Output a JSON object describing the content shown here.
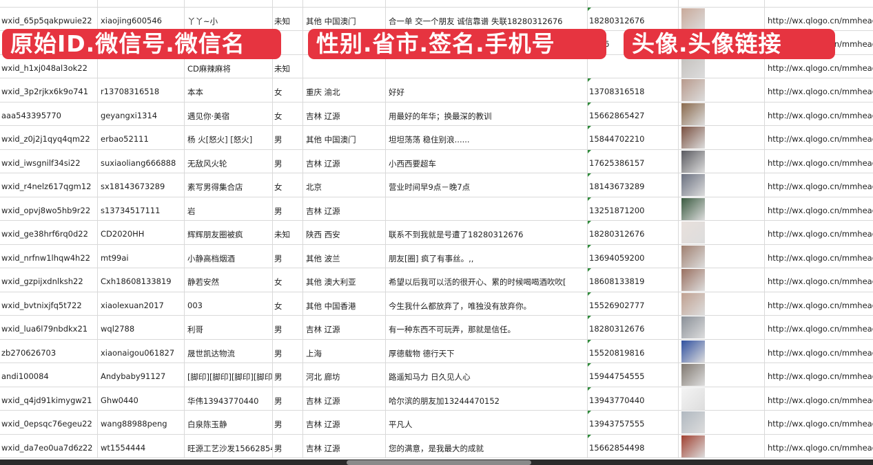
{
  "overlay_labels": [
    "原始ID.微信号.微信名",
    "性别.省市.签名.手机号",
    "头像.头像链接"
  ],
  "colors": {
    "label_bg": "#e63440",
    "grid": "#d9d9d9",
    "comment_marker": "#2e8b3a"
  },
  "rows": [
    {
      "id": "",
      "wechat": "",
      "name": "",
      "gender": "",
      "region": "",
      "signature": "",
      "phone": "",
      "url": ""
    },
    {
      "id": "wxid_65p5qakpwuie22",
      "wechat": "xiaojing600546",
      "name": "丫丫~小",
      "gender": "未知",
      "region": "其他 中国澳门",
      "signature": "合一单 交一个朋友 诚信靠谱 失联18280312676",
      "phone": "18280312676",
      "url": "http://wx.qlogo.cn/mmhead",
      "avatar": "#c9a99a"
    },
    {
      "id": "",
      "wechat": "",
      "name": "",
      "gender": "",
      "region": "",
      "signature": "",
      "phone": "5386",
      "url": "http://wx.qlogo.cn/mmhead",
      "avatar": "#6b7fa8"
    },
    {
      "id": "wxid_h1xj048al3ok22",
      "wechat": "",
      "name": "CD麻辣麻将",
      "gender": "未知",
      "region": "",
      "signature": "",
      "phone": "",
      "url": "http://wx.qlogo.cn/mmhead",
      "avatar": "#c4c0bc"
    },
    {
      "id": "wxid_3p2rjkx6k9o741",
      "wechat": "r13708316518",
      "name": "本本",
      "gender": "女",
      "region": "重庆 渝北",
      "signature": "好好",
      "phone": "13708316518",
      "url": "http://wx.qlogo.cn/mmhead",
      "avatar": "#b89a8c"
    },
    {
      "id": "aaa543395770",
      "wechat": "geyangxi1314",
      "name": "遇见你·美宿",
      "gender": "女",
      "region": "吉林 辽源",
      "signature": "用最好的年华；换最深的教训",
      "phone": "15662865427",
      "url": "http://wx.qlogo.cn/mmhead",
      "avatar": "#8a6a4c"
    },
    {
      "id": "wxid_z0j2j1qyq4qm22",
      "wechat": "erbao52111",
      "name": "杨 火[怒火] [怒火]",
      "gender": "男",
      "region": "其他 中国澳门",
      "signature": "坦坦荡荡 稳住别浪......",
      "phone": "15844702210",
      "url": "http://wx.qlogo.cn/mmhead",
      "avatar": "#7a5040"
    },
    {
      "id": "wxid_iwsgnilf34si22",
      "wechat": "suxiaoliang666888",
      "name": "无敌风火轮",
      "gender": "男",
      "region": "吉林 辽源",
      "signature": "小西西要超车",
      "phone": "17625386157",
      "url": "http://wx.qlogo.cn/mmhead",
      "avatar": "#5a5a60"
    },
    {
      "id": "wxid_r4nelz617qgm12",
      "wechat": "sx18143673289",
      "name": "素写男得集合店",
      "gender": "女",
      "region": "北京",
      "signature": "营业时间早9点－晚7点",
      "phone": "18143673289",
      "url": "http://wx.qlogo.cn/mmhead",
      "avatar": "#6a7080"
    },
    {
      "id": "wxid_opvj8wo5hb9r22",
      "wechat": "s13734517111",
      "name": "岩",
      "gender": "男",
      "region": "吉林 辽源",
      "signature": "",
      "phone": "13251871200",
      "url": "http://wx.qlogo.cn/mmhead",
      "avatar": "#3a5a40"
    },
    {
      "id": "wxid_ge38hrf6rq0d22",
      "wechat": "CD2020HH",
      "name": "辉辉朋友圈被疯",
      "gender": "未知",
      "region": "陕西 西安",
      "signature": "联系不到我就是号遭了18280312676",
      "phone": "18280312676",
      "url": "http://wx.qlogo.cn/mmhead",
      "avatar": "#e8e0dc"
    },
    {
      "id": "wxid_nrfnw1lhqw4h22",
      "wechat": "mt99ai",
      "name": "小静高档烟酒",
      "gender": "男",
      "region": "其他 波兰",
      "signature": "朋友[圈] 疯了有事丝。,,",
      "phone": "13694059200",
      "url": "http://wx.qlogo.cn/mmhead",
      "avatar": "#a08070"
    },
    {
      "id": "wxid_gzpijxdnlksh22",
      "wechat": "Cxh18608133819",
      "name": "静若安然",
      "gender": "女",
      "region": "其他 澳大利亚",
      "signature": "希望以后我可以活的很开心、累的时候喝喝酒吹吹[",
      "phone": "18608133819",
      "url": "http://wx.qlogo.cn/mmhead",
      "avatar": "#9a7060"
    },
    {
      "id": "wxid_bvtnixjfq5t722",
      "wechat": "xiaolexuan2017",
      "name": "003",
      "gender": "女",
      "region": "其他 中国香港",
      "signature": "今生我什么都放弃了，唯独没有放弃你。",
      "phone": "15526902777",
      "url": "http://wx.qlogo.cn/mmhead",
      "avatar": "#c0a090"
    },
    {
      "id": "wxid_lua6l79nbdkx21",
      "wechat": "wql2788",
      "name": "利哥",
      "gender": "男",
      "region": "吉林 辽源",
      "signature": "有一种东西不可玩弄，那就是信任。",
      "phone": "18280312676",
      "url": "http://wx.qlogo.cn/mmhead",
      "avatar": "#8a9098"
    },
    {
      "id": "zb270626703",
      "wechat": "xiaonaigou061827",
      "name": "晟世凯达物流",
      "gender": "男",
      "region": "上海",
      "signature": "厚德载物 德行天下",
      "phone": "15520819816",
      "url": "http://wx.qlogo.cn/mmhead",
      "avatar": "#3050a0"
    },
    {
      "id": "andi100084",
      "wechat": "Andybaby91127",
      "name": "[脚印][脚印][脚印][脚印]",
      "gender": "男",
      "region": "河北 廊坊",
      "signature": "路遥知马力 日久见人心",
      "phone": "15944754555",
      "url": "http://wx.qlogo.cn/mmhead",
      "avatar": "#807870"
    },
    {
      "id": "wxid_q4jd91kimygw21",
      "wechat": "Ghw0440",
      "name": "华伟13943770440",
      "gender": "男",
      "region": "吉林 辽源",
      "signature": "哈尔滨的朋友加13244470152",
      "phone": "13943770440",
      "url": "http://wx.qlogo.cn/mmhead",
      "avatar": "#f4f4f4"
    },
    {
      "id": "wxid_0epsqc76egeu22",
      "wechat": "wang88988peng",
      "name": "白泉陈玉静",
      "gender": "男",
      "region": "吉林 辽源",
      "signature": "平凡人",
      "phone": "13943757555",
      "url": "http://wx.qlogo.cn/mmhead",
      "avatar": "#b0b8c0"
    },
    {
      "id": "wxid_da7eo0ua7d6z22",
      "wechat": "wt1554444",
      "name": "旺源工艺沙发15662854",
      "gender": "男",
      "region": "吉林 辽源",
      "signature": "您的满意，是我最大的成就",
      "phone": "15662854498",
      "url": "http://wx.qlogo.cn/mmhead",
      "avatar": "#a04030"
    }
  ]
}
